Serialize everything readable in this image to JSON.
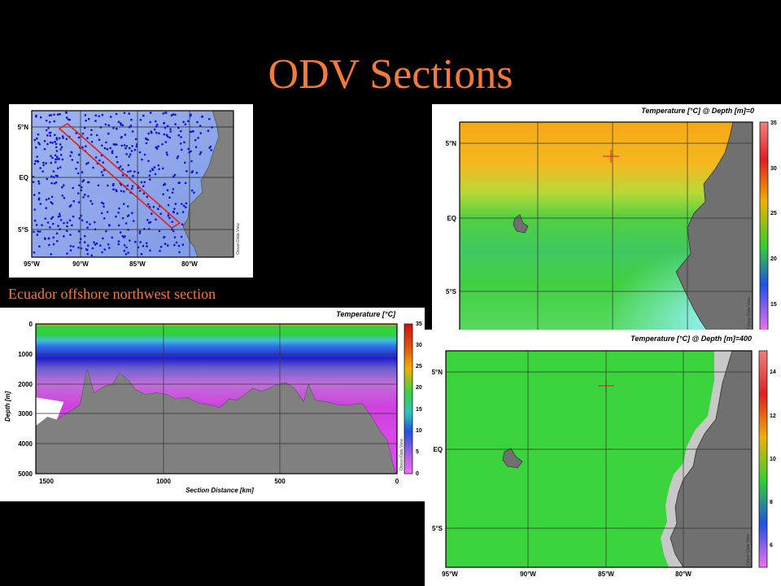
{
  "slide": {
    "title": "ODV Sections",
    "caption": "Ecuador offshore northwest section"
  },
  "colors": {
    "title": "#f47a3a",
    "background": "#000000",
    "land": "#808080",
    "stations": "#1010dd",
    "section_line": "#e02020"
  },
  "chart_data": [
    {
      "type": "scatter",
      "panel": "station-map",
      "title": "",
      "x_ticks": [
        "95°W",
        "90°W",
        "85°W",
        "80°W"
      ],
      "y_ticks": [
        "5°N",
        "EQ",
        "5°S"
      ],
      "watermark": "Ocean Data View",
      "series": [
        {
          "name": "",
          "marker": "dot"
        }
      ],
      "section_line": {
        "from": {
          "lon": -90.5,
          "lat": 5.0
        },
        "to": {
          "lon": -81.5,
          "lat": -4.2
        }
      }
    },
    {
      "type": "heatmap",
      "panel": "section-profile",
      "title": "Temperature [°C]",
      "xlabel": "Section Distance [km]",
      "ylabel": "Depth [m]",
      "x_ticks": [
        "1500",
        "1000",
        "500",
        "0"
      ],
      "y_ticks": [
        "0",
        "1000",
        "2000",
        "3000",
        "4000",
        "5000"
      ],
      "xlim": [
        1550,
        0
      ],
      "ylim": [
        0,
        5000
      ],
      "colorbar": {
        "min": 0,
        "max": 35,
        "ticks": [
          "35",
          "30",
          "25",
          "20",
          "15",
          "10",
          "5",
          "0"
        ]
      },
      "watermark": "Ocean Data View",
      "bathymetry": {
        "distance_km": [
          1550,
          1530,
          1500,
          1460,
          1400,
          1360,
          1330,
          1300,
          1260,
          1220,
          1190,
          1150,
          1120,
          1080,
          1030,
          990,
          950,
          900,
          850,
          800,
          760,
          720,
          690,
          660,
          620,
          580,
          520,
          480,
          440,
          400,
          380,
          350,
          300,
          250,
          200,
          150,
          100,
          70,
          40,
          20,
          5,
          0
        ],
        "depth_m": [
          3400,
          2900,
          3100,
          3200,
          2900,
          2700,
          1500,
          2300,
          2100,
          2000,
          1650,
          1900,
          2200,
          2350,
          2300,
          2350,
          2500,
          2450,
          2650,
          2700,
          2800,
          2500,
          2550,
          2400,
          2150,
          2250,
          2050,
          1950,
          2150,
          2600,
          2000,
          2550,
          2600,
          2700,
          2700,
          2650,
          3200,
          3600,
          3900,
          4600,
          5000,
          5000
        ]
      }
    },
    {
      "type": "heatmap",
      "panel": "surface-map",
      "title": "Temperature [°C] @ Depth [m]=0",
      "x_ticks": [],
      "y_ticks": [
        "5°N",
        "EQ",
        "5°S"
      ],
      "colorbar": {
        "min": 12,
        "max": 35,
        "ticks": [
          "35",
          "30",
          "25",
          "20",
          "15"
        ]
      },
      "watermark": "Ocean Data View"
    },
    {
      "type": "heatmap",
      "panel": "depth400-map",
      "title": "Temperature [°C] @ Depth [m]=400",
      "x_ticks": [
        "95°W",
        "90°W",
        "85°W",
        "80°W"
      ],
      "y_ticks": [
        "5°N",
        "EQ",
        "5°S"
      ],
      "colorbar": {
        "min": 5,
        "max": 15,
        "ticks": [
          "14",
          "12",
          "10",
          "8",
          "6"
        ]
      },
      "watermark": "Ocean Data View"
    }
  ]
}
